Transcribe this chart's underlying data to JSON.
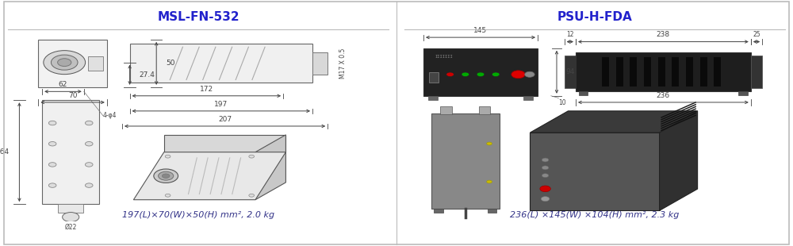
{
  "left_title": "MSL-FN-532",
  "right_title": "PSU-H-FDA",
  "left_caption": "197(L)×70(W)×50(H) mm², 2.0 kg",
  "right_caption": "236(L) ×145(W) ×104(H) mm², 2.3 kg",
  "title_color": "#2222cc",
  "border_color": "#bbbbbb",
  "dim_color": "#444444",
  "bg_color": "#ffffff",
  "title_fontsize": 11,
  "caption_fontsize": 8,
  "dim_fontsize": 6.5
}
